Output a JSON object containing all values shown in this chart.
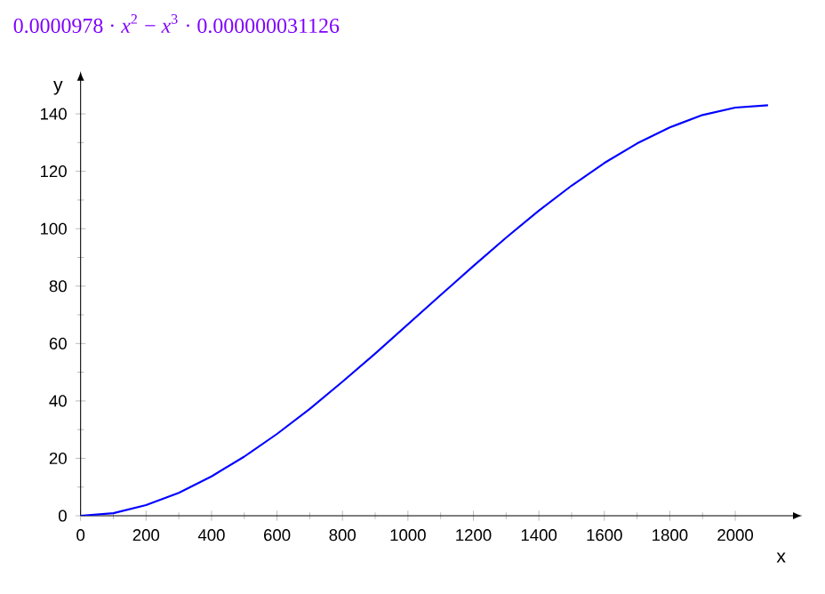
{
  "chart_data": {
    "type": "line",
    "title": "0.0000978 · *x*$^{2}$ − *x*$^{3}$ · 0.000000031126",
    "xlabel": "x",
    "ylabel": "y",
    "x": [
      0,
      100,
      200,
      300,
      400,
      500,
      600,
      700,
      800,
      900,
      1000,
      1100,
      1200,
      1300,
      1400,
      1500,
      1600,
      1700,
      1800,
      1900,
      2000,
      2100
    ],
    "series": [
      {
        "color": "#0000ff",
        "values": [
          0,
          0.9,
          3.7,
          8.0,
          13.7,
          20.6,
          28.5,
          37.2,
          46.7,
          56.5,
          66.7,
          76.9,
          87.0,
          96.9,
          106.3,
          115.0,
          122.9,
          129.7,
          135.3,
          139.6,
          142.2,
          143.0
        ]
      }
    ],
    "xlim": [
      0,
      2180
    ],
    "ylim": [
      0,
      152
    ],
    "xticks": [
      0,
      200,
      400,
      600,
      800,
      1000,
      1200,
      1400,
      1600,
      1800,
      2000
    ],
    "yticks": [
      0,
      20,
      40,
      60,
      80,
      100,
      120,
      140
    ],
    "grid": false,
    "legend": false,
    "marker": "none",
    "line_style": "solid"
  }
}
